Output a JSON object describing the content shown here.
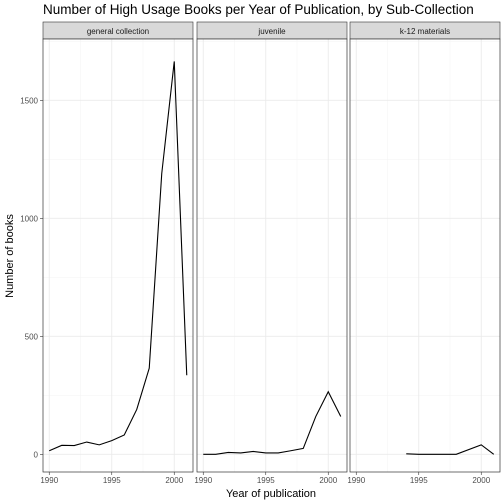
{
  "chart_data": {
    "type": "line",
    "title": "Number of High Usage Books per Year of Publication, by Sub-Collection",
    "xlabel": "Year of publication",
    "ylabel": "Number of books",
    "xlim": [
      1989.5,
      2001.5
    ],
    "ylim": [
      -75,
      1760
    ],
    "x_ticks": [
      1990,
      1995,
      2000
    ],
    "y_ticks": [
      0,
      500,
      1000,
      1500
    ],
    "grid": true,
    "panels": [
      {
        "label": "general collection",
        "x": [
          1990,
          1991,
          1992,
          1993,
          1994,
          1995,
          1996,
          1997,
          1998,
          1999,
          2000,
          2001
        ],
        "y": [
          15,
          38,
          37,
          52,
          40,
          58,
          82,
          190,
          365,
          1190,
          1665,
          335
        ]
      },
      {
        "label": "juvenile",
        "x": [
          1990,
          1991,
          1992,
          1993,
          1994,
          1995,
          1996,
          1997,
          1998,
          1999,
          2000,
          2001
        ],
        "y": [
          0,
          0,
          8,
          6,
          12,
          6,
          6,
          15,
          25,
          160,
          265,
          160
        ]
      },
      {
        "label": "k-12 materials",
        "x": [
          1994,
          1995,
          1998,
          2000,
          2001
        ],
        "y": [
          2,
          0,
          0,
          40,
          0
        ]
      }
    ]
  }
}
